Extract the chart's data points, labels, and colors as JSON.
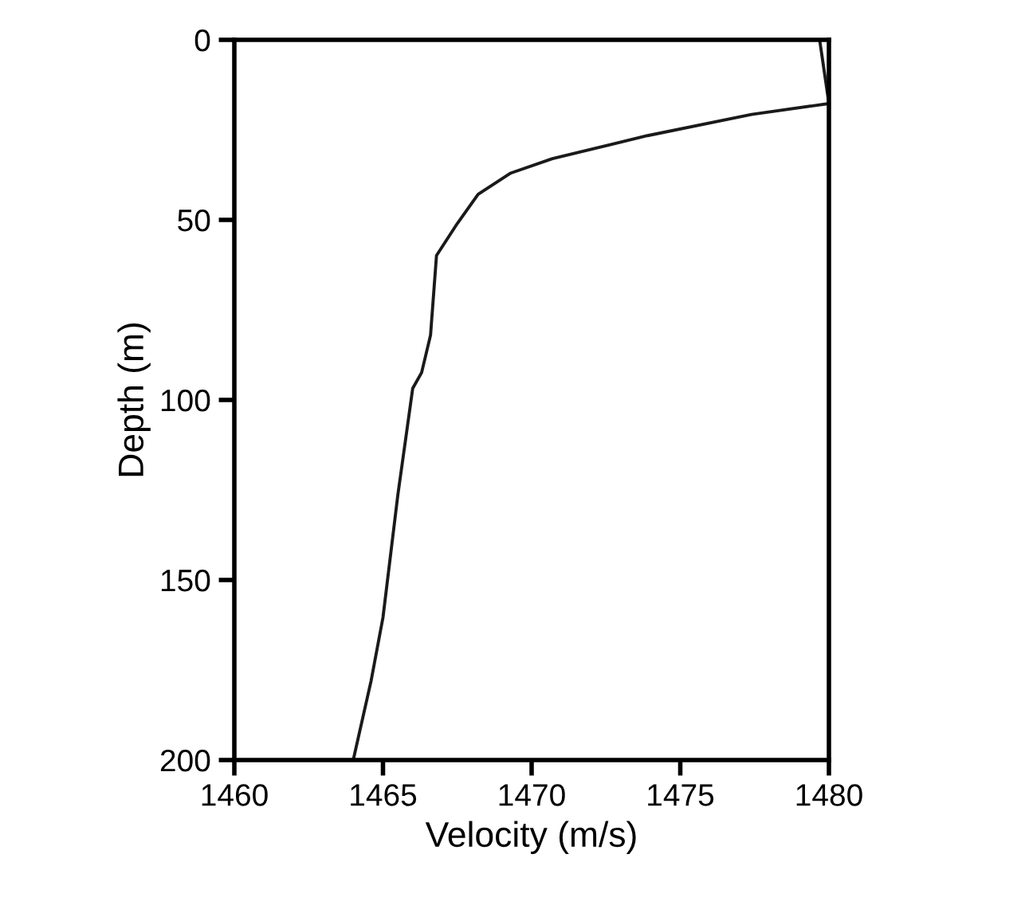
{
  "chart_data": {
    "type": "line",
    "xlabel": "Velocity (m/s)",
    "ylabel": "Depth (m)",
    "x": [
      1479.7,
      1480.0,
      1477.4,
      1473.9,
      1470.7,
      1469.3,
      1468.2,
      1467.5,
      1466.8,
      1466.6,
      1466.3,
      1466.0,
      1465.5,
      1465.0,
      1464.6,
      1464.0
    ],
    "values": [
      0.7,
      17.7,
      20.7,
      26.6,
      33.0,
      37.0,
      42.9,
      51.0,
      59.9,
      82.0,
      92.4,
      96.8,
      126.4,
      160.4,
      178.0,
      200.0
    ],
    "color": "#1a1a1a",
    "xlim": [
      1460,
      1480
    ],
    "xticks": [
      1460,
      1465,
      1470,
      1475,
      1480
    ],
    "ylim": [
      200,
      0
    ],
    "yticks": [
      0,
      50,
      100,
      150,
      200
    ],
    "grid": false,
    "legend": false,
    "marker": "none",
    "line_style": "solid"
  }
}
